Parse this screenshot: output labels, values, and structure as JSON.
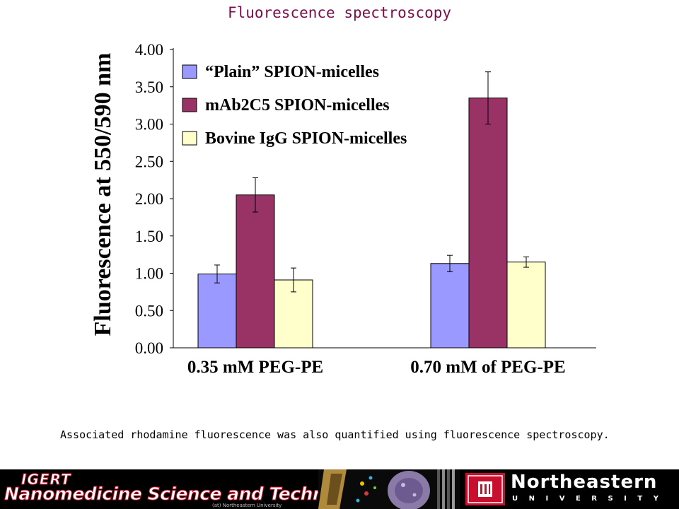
{
  "slide_title": "Fluorescence spectroscopy",
  "caption": "Associated rhodamine fluorescence was also quantified using fluorescence spectroscopy.",
  "chart_data": {
    "type": "bar",
    "title": "",
    "xlabel": "",
    "ylabel": "Fluorescence at 550/590 nm",
    "ylim": [
      0,
      4
    ],
    "yticks": [
      "0.00",
      "0.50",
      "1.00",
      "1.50",
      "2.00",
      "2.50",
      "3.00",
      "3.50",
      "4.00"
    ],
    "categories": [
      "0.35 mM PEG-PE",
      "0.70 mM of PEG-PE"
    ],
    "grid": false,
    "legend_position": "top-left",
    "series": [
      {
        "name": "“Plain” SPION-micelles",
        "color": "#9999ff",
        "values": [
          0.99,
          1.13
        ],
        "errors": [
          0.12,
          0.11
        ]
      },
      {
        "name": "mAb2C5 SPION-micelles",
        "color": "#993366",
        "values": [
          2.05,
          3.35
        ],
        "errors": [
          0.23,
          0.35
        ]
      },
      {
        "name": "Bovine IgG SPION-micelles",
        "color": "#ffffcc",
        "values": [
          0.91,
          1.15
        ],
        "errors": [
          0.16,
          0.07
        ]
      }
    ]
  },
  "footer": {
    "igert_word": "IGERT",
    "program_name": "Nanomedicine Science and Technology",
    "program_sub": "(at) Northeastern University",
    "university_name": "Northeastern",
    "university_word": "UNIVERSITY"
  }
}
